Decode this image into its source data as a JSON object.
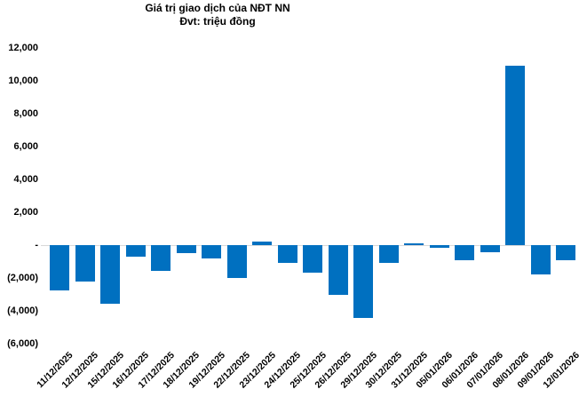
{
  "chart_data": {
    "type": "bar",
    "title": "Giá trị giao dịch của NĐT NN",
    "subtitle": "Đvt: triệu đồng",
    "unit": "triệu đồng",
    "categories": [
      "11/12/2025",
      "12/12/2025",
      "15/12/2025",
      "16/12/2025",
      "17/12/2025",
      "18/12/2025",
      "19/12/2025",
      "22/12/2025",
      "23/12/2025",
      "24/12/2025",
      "25/12/2025",
      "26/12/2025",
      "29/12/2025",
      "30/12/2025",
      "31/12/2025",
      "05/01/2026",
      "06/01/2026",
      "07/01/2026",
      "08/01/2026",
      "09/01/2026",
      "12/01/2026"
    ],
    "values": [
      -2770,
      -2230,
      -3550,
      -720,
      -1590,
      -500,
      -810,
      -2020,
      230,
      -1060,
      -1660,
      -3030,
      -4420,
      -1080,
      130,
      -150,
      -930,
      -450,
      10900,
      -1770,
      -900
    ],
    "ylim": [
      -6000,
      12000
    ],
    "y_tick_interval": 2000,
    "y_tick_labels": [
      "12,000",
      "10,000",
      "8,000",
      "6,000",
      "4,000",
      "2,000",
      "-",
      "(2,000)",
      "(4,000)",
      "(6,000)"
    ],
    "grid": false,
    "legend_position": "none",
    "bar_color": "#0070C0",
    "axis_line_color": "#D9D9D9",
    "text_color": "#000000",
    "negative_number_format": "parentheses"
  }
}
